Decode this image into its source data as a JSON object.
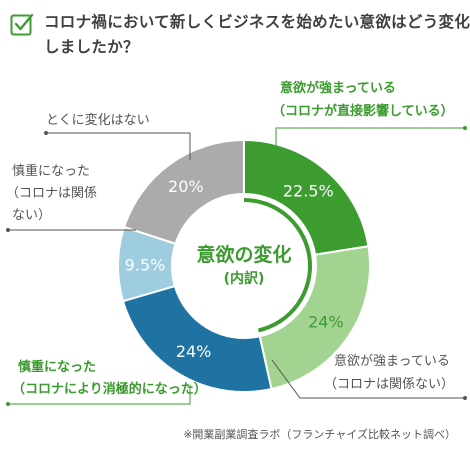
{
  "title": "コロナ禍において新しくビジネスを始めたい意欲はどう変化しましたか？",
  "center": {
    "line1": "意欲の変化",
    "line2": "(内訳)"
  },
  "labels": {
    "strong_direct": [
      "意欲が強まっている",
      "（コロナが直接影響している）"
    ],
    "strong_unrelated": [
      "意欲が強まっている",
      "（コロナは関係ない）"
    ],
    "weak_negative": [
      "慎重になった",
      "（コロナにより消極的になった）"
    ],
    "weak_unrelated": [
      "慎重になった",
      "（コロナは関係",
      "ない）"
    ],
    "no_change": [
      "とくに変化はない"
    ]
  },
  "footnote": "※開業副業調査ラボ（フランチャイズ比較ネット調べ）",
  "chart_data": {
    "type": "pie",
    "donut": true,
    "unit": "%",
    "categories": [
      "意欲が強まっている（コロナが直接影響している）",
      "意欲が強まっている（コロナは関係ない）",
      "慎重になった（コロナにより消極的になった）",
      "慎重になった（コロナは関係ない）",
      "とくに変化はない"
    ],
    "values": [
      22.5,
      24,
      24,
      9.5,
      20
    ],
    "value_labels": [
      "22.5%",
      "24%",
      "24%",
      "9.5%",
      "20%"
    ],
    "colors": [
      "#3d9c2f",
      "#a3d390",
      "#1f73a3",
      "#9fcde0",
      "#ababab"
    ],
    "center_title": "意欲の変化",
    "center_subtitle": "(内訳)"
  }
}
